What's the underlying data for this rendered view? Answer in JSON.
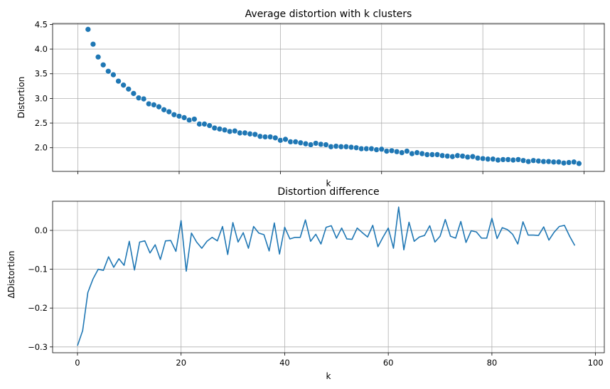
{
  "chart_data": [
    {
      "type": "scatter",
      "title": "Average distortion with k clusters",
      "xlabel": "k",
      "ylabel": "Distortion",
      "xlim": [
        -5,
        104
      ],
      "ylim": [
        1.52,
        4.52
      ],
      "xticks": [
        0,
        20,
        40,
        60,
        80,
        100
      ],
      "show_xtick_labels": false,
      "yticks": [
        2.0,
        2.5,
        3.0,
        3.5,
        4.0,
        4.5
      ],
      "ytick_labels": [
        "2.0",
        "2.5",
        "3.0",
        "3.5",
        "4.0",
        "4.5"
      ],
      "grid": true,
      "color": "#1f77b4",
      "x": [
        2,
        3,
        4,
        5,
        6,
        7,
        8,
        9,
        10,
        11,
        12,
        13,
        14,
        15,
        16,
        17,
        18,
        19,
        20,
        21,
        22,
        23,
        24,
        25,
        26,
        27,
        28,
        29,
        30,
        31,
        32,
        33,
        34,
        35,
        36,
        37,
        38,
        39,
        40,
        41,
        42,
        43,
        44,
        45,
        46,
        47,
        48,
        49,
        50,
        51,
        52,
        53,
        54,
        55,
        56,
        57,
        58,
        59,
        60,
        61,
        62,
        63,
        64,
        65,
        66,
        67,
        68,
        69,
        70,
        71,
        72,
        73,
        74,
        75,
        76,
        77,
        78,
        79,
        80,
        81,
        82,
        83,
        84,
        85,
        86,
        87,
        88,
        89,
        90,
        91,
        92,
        93,
        94,
        95,
        96,
        97,
        98,
        99
      ],
      "y": [
        4.4,
        4.1,
        3.84,
        3.68,
        3.55,
        3.48,
        3.35,
        3.27,
        3.19,
        3.1,
        3.01,
        2.99,
        2.89,
        2.87,
        2.83,
        2.77,
        2.73,
        2.67,
        2.64,
        2.61,
        2.56,
        2.58,
        2.48,
        2.48,
        2.45,
        2.4,
        2.38,
        2.36,
        2.33,
        2.34,
        2.3,
        2.3,
        2.28,
        2.27,
        2.23,
        2.22,
        2.22,
        2.2,
        2.15,
        2.17,
        2.12,
        2.12,
        2.1,
        2.08,
        2.06,
        2.09,
        2.07,
        2.06,
        2.02,
        2.03,
        2.02,
        2.02,
        2.01,
        2.0,
        1.98,
        1.98,
        1.98,
        1.96,
        1.97,
        1.93,
        1.94,
        1.92,
        1.9,
        1.93,
        1.88,
        1.9,
        1.88,
        1.86,
        1.86,
        1.86,
        1.84,
        1.83,
        1.82,
        1.84,
        1.83,
        1.81,
        1.82,
        1.79,
        1.78,
        1.77,
        1.77,
        1.75,
        1.76,
        1.76,
        1.75,
        1.76,
        1.74,
        1.72,
        1.74,
        1.73,
        1.72,
        1.72,
        1.71,
        1.71,
        1.69,
        1.7,
        1.71,
        1.68
      ]
    },
    {
      "type": "line",
      "title": "Distortion difference",
      "xlabel": "k",
      "ylabel": "ΔDistortion",
      "xlim": [
        -4.8,
        101.7
      ],
      "ylim": [
        -0.315,
        0.075
      ],
      "xticks": [
        0,
        20,
        40,
        60,
        80,
        100
      ],
      "xtick_labels": [
        "0",
        "20",
        "40",
        "60",
        "80",
        "100"
      ],
      "yticks": [
        -0.3,
        -0.2,
        -0.1,
        0.0
      ],
      "ytick_labels": [
        "−0.3",
        "−0.2",
        "−0.1",
        "0.0"
      ],
      "grid": true,
      "color": "#1f77b4",
      "x": [
        0,
        1,
        2,
        3,
        4,
        5,
        6,
        7,
        8,
        9,
        10,
        11,
        12,
        13,
        14,
        15,
        16,
        17,
        18,
        19,
        20,
        21,
        22,
        23,
        24,
        25,
        26,
        27,
        28,
        29,
        30,
        31,
        32,
        33,
        34,
        35,
        36,
        37,
        38,
        39,
        40,
        41,
        42,
        43,
        44,
        45,
        46,
        47,
        48,
        49,
        50,
        51,
        52,
        53,
        54,
        55,
        56,
        57,
        58,
        59,
        60,
        61,
        62,
        63,
        64,
        65,
        66,
        67,
        68,
        69,
        70,
        71,
        72,
        73,
        74,
        75,
        76,
        77,
        78,
        79,
        80,
        81,
        82,
        83,
        84,
        85,
        86,
        87,
        88,
        89,
        90,
        91,
        92,
        93,
        94,
        95,
        96
      ],
      "y": [
        -0.297,
        -0.258,
        -0.16,
        -0.125,
        -0.1,
        -0.103,
        -0.068,
        -0.095,
        -0.073,
        -0.09,
        -0.028,
        -0.102,
        -0.03,
        -0.027,
        -0.058,
        -0.037,
        -0.075,
        -0.027,
        -0.026,
        -0.054,
        0.025,
        -0.105,
        -0.007,
        -0.03,
        -0.046,
        -0.028,
        -0.018,
        -0.027,
        0.01,
        -0.062,
        0.02,
        -0.03,
        -0.006,
        -0.046,
        0.01,
        -0.007,
        -0.011,
        -0.053,
        0.019,
        -0.061,
        0.008,
        -0.022,
        -0.018,
        -0.018,
        0.027,
        -0.028,
        -0.01,
        -0.035,
        0.008,
        0.012,
        -0.02,
        0.006,
        -0.022,
        -0.023,
        0.006,
        -0.006,
        -0.017,
        0.013,
        -0.042,
        -0.017,
        0.006,
        -0.046,
        0.06,
        -0.05,
        0.021,
        -0.028,
        -0.017,
        -0.013,
        0.012,
        -0.03,
        -0.015,
        0.028,
        -0.015,
        -0.02,
        0.023,
        -0.031,
        -0.001,
        -0.004,
        -0.02,
        -0.02,
        0.031,
        -0.021,
        0.007,
        0.002,
        -0.01,
        -0.035,
        0.022,
        -0.012,
        -0.012,
        -0.013,
        0.009,
        -0.025,
        -0.005,
        0.01,
        0.013,
        -0.015,
        -0.039
      ]
    }
  ]
}
